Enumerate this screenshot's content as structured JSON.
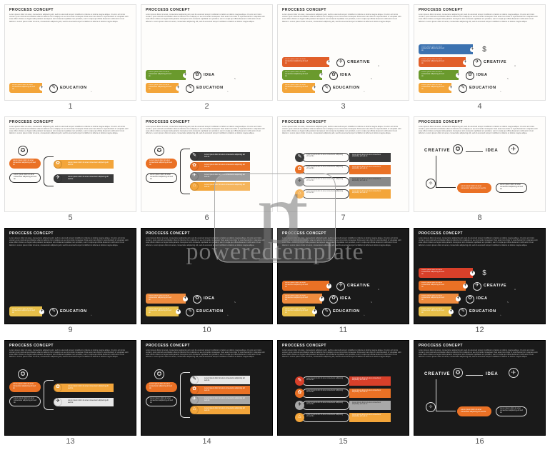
{
  "watermark": {
    "logo": "pt",
    "text": "poweredtemplate"
  },
  "lorem_para": "Lorem ipsum dolor sit amet, consectetur adipiscing elit, sed do eiusmod tempor incididunt ut labore et dolore magna aliqua. Ut enim ad minim veniam, quis nostrud exercitation ullamco laboris nisi ut aliquip ex ea commodo consequat. Duis aute irure dolor in reprehenderit in voluptate velit esse cillum dolore eu fugiat nulla pariatur. Excepteur sint occaecat cupidatat non proident, sunt in culpa qui officia deserunt mollit anim id est laborum. Lorem ipsum dolor sit amet, consectetur adipiscing elit, sed do eiusmod tempor incididunt ut labore et dolore magna aliqua.",
  "lorem_tiny": "Lorem ipsum dolor sit amet consectetur adipiscing elit sed do",
  "title_text": "PROCCESS CONCEPT",
  "steps": {
    "education": {
      "label": "EDUCATION",
      "icon": "✎",
      "band_color": "#f3a53a"
    },
    "idea": {
      "label": "IDEA",
      "icon": "✿",
      "band_color": "#6a9a2d"
    },
    "creative": {
      "label": "CREATIVE",
      "icon": "✈",
      "band_color": "#e15f2a"
    },
    "dollar": {
      "label": "$",
      "icon": "$",
      "band_color": "#3c72b0"
    }
  },
  "palette": {
    "orange": "#ea7125",
    "amber": "#f3a53a",
    "green": "#6a9a2d",
    "blue": "#3c72b0",
    "red": "#d9402a",
    "darkgray": "#3a3a3a",
    "gray": "#888888",
    "yellow": "#e8c04a",
    "lightorange": "#f08c3e"
  },
  "slides": [
    {
      "n": 1,
      "theme": "light",
      "layout": "stairs",
      "levels": 1
    },
    {
      "n": 2,
      "theme": "light",
      "layout": "stairs",
      "levels": 2
    },
    {
      "n": 3,
      "theme": "light",
      "layout": "stairs",
      "levels": 3
    },
    {
      "n": 4,
      "theme": "light",
      "layout": "stairs",
      "levels": 4
    },
    {
      "n": 5,
      "theme": "light",
      "layout": "biforc",
      "branches": 2,
      "bars": [
        {
          "c": "#f3a53a",
          "i": "✿"
        },
        {
          "c": "#3a3a3a",
          "i": "✈"
        }
      ]
    },
    {
      "n": 6,
      "theme": "light",
      "layout": "biforc",
      "branches": 4,
      "bars": [
        {
          "c": "#3a3a3a",
          "i": "✎"
        },
        {
          "c": "#ea7125",
          "i": "✿"
        },
        {
          "c": "#888888",
          "i": "✈"
        },
        {
          "c": "#f3a53a",
          "i": "⌂"
        }
      ]
    },
    {
      "n": 7,
      "theme": "light",
      "layout": "pillgrid",
      "bars": [
        {
          "c": "#3a3a3a",
          "i": "✎"
        },
        {
          "c": "#ea7125",
          "i": "✿"
        },
        {
          "c": "#888888",
          "i": "✈"
        },
        {
          "c": "#f3a53a",
          "i": "⌂"
        }
      ]
    },
    {
      "n": 8,
      "theme": "light",
      "layout": "flow"
    },
    {
      "n": 9,
      "theme": "dark",
      "layout": "stairs",
      "levels": 1
    },
    {
      "n": 10,
      "theme": "dark",
      "layout": "stairs",
      "levels": 2
    },
    {
      "n": 11,
      "theme": "dark",
      "layout": "stairs",
      "levels": 3
    },
    {
      "n": 12,
      "theme": "dark",
      "layout": "stairs",
      "levels": 4
    },
    {
      "n": 13,
      "theme": "dark",
      "layout": "biforc",
      "branches": 2,
      "bars": [
        {
          "c": "#f3a53a",
          "i": "✿"
        },
        {
          "c": "#e8e8e8",
          "i": "✈"
        }
      ]
    },
    {
      "n": 14,
      "theme": "dark",
      "layout": "biforc",
      "branches": 4,
      "bars": [
        {
          "c": "#e8e8e8",
          "i": "✎"
        },
        {
          "c": "#ea7125",
          "i": "✿"
        },
        {
          "c": "#a8a8a8",
          "i": "✈"
        },
        {
          "c": "#f3a53a",
          "i": "⌂"
        }
      ]
    },
    {
      "n": 15,
      "theme": "dark",
      "layout": "pillgrid",
      "bars": [
        {
          "c": "#d9402a",
          "i": "✎"
        },
        {
          "c": "#ea7125",
          "i": "✿"
        },
        {
          "c": "#a8a8a8",
          "i": "✈"
        },
        {
          "c": "#f3a53a",
          "i": "⌂"
        }
      ]
    },
    {
      "n": 16,
      "theme": "dark",
      "layout": "flow"
    }
  ],
  "dark_stairs_colors": [
    "#e8c04a",
    "#f08c3e",
    "#ea7125",
    "#d9402a"
  ]
}
